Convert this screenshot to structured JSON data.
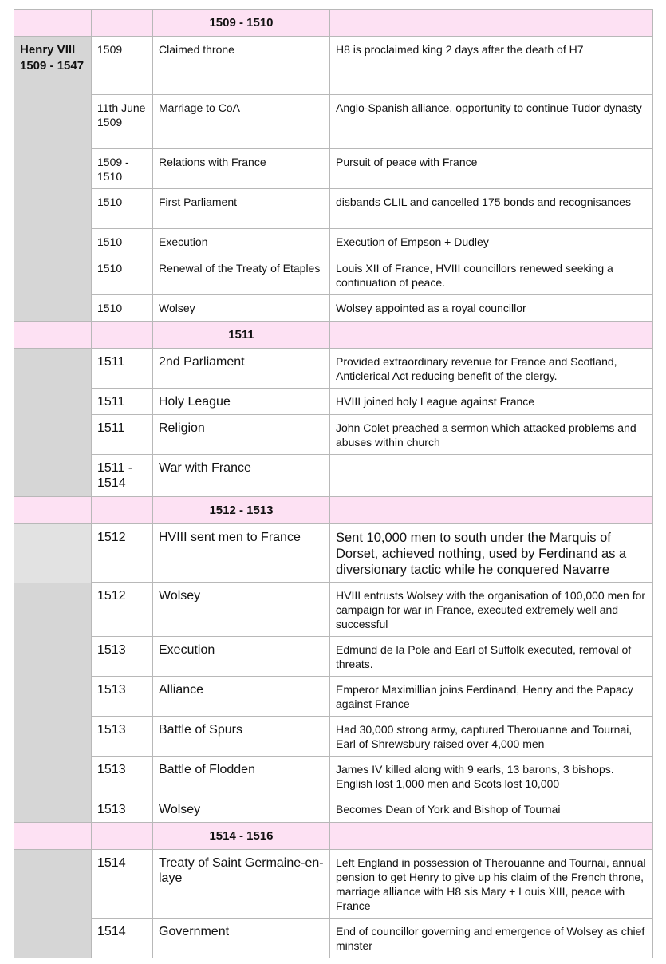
{
  "king": "Henry VIII 1509 - 1547",
  "colors": {
    "section_header": "#fde1f3",
    "reign_column": "#d6d6d6",
    "border": "#b8b8b8"
  },
  "sections": [
    {
      "title": "1509 - 1510",
      "rows": [
        {
          "year": "1509",
          "event": "Claimed throne",
          "detail": "H8 is proclaimed king 2 days after the death of H7"
        },
        {
          "year": "11th June 1509",
          "event": "Marriage to CoA",
          "detail": "Anglo-Spanish alliance, opportunity to continue Tudor dynasty"
        },
        {
          "year": "1509 - 1510",
          "event": "Relations with France",
          "detail": "Pursuit of peace with France"
        },
        {
          "year": "1510",
          "event": "First Parliament",
          "detail": "disbands CLIL and cancelled 175 bonds and recognisances"
        },
        {
          "year": "1510",
          "event": "Execution",
          "detail": "Execution of Empson + Dudley"
        },
        {
          "year": "1510",
          "event": "Renewal of the Treaty of Etaples",
          "detail": "Louis XII of France, HVIII councillors renewed seeking a continuation of peace."
        },
        {
          "year": "1510",
          "event": "Wolsey",
          "detail": "Wolsey appointed as a royal councillor"
        }
      ]
    },
    {
      "title": "1511",
      "rows": [
        {
          "year": "1511",
          "event": "2nd Parliament",
          "detail": "Provided extraordinary revenue for France and Scotland, Anticlerical Act reducing benefit of the clergy."
        },
        {
          "year": "1511",
          "event": "Holy League",
          "detail": "HVIII joined holy League against France"
        },
        {
          "year": "1511",
          "event": "Religion",
          "detail": "John Colet preached a sermon which attacked problems and abuses within church"
        },
        {
          "year": "1511 - 1514",
          "event": "War with France",
          "detail": ""
        }
      ]
    },
    {
      "title": "1512 - 1513",
      "rows": [
        {
          "year": "1512",
          "event": "HVIII sent men to France",
          "detail": "Sent 10,000 men to south under the Marquis of Dorset, achieved nothing, used by Ferdinand as a diversionary tactic while he conquered Navarre"
        },
        {
          "year": "1512",
          "event": "Wolsey",
          "detail": "HVIII entrusts Wolsey with the organisation of 100,000 men for campaign for war in France, executed extremely well and successful"
        },
        {
          "year": "1513",
          "event": "Execution",
          "detail": "Edmund de la Pole and Earl of Suffolk executed, removal of threats."
        },
        {
          "year": "1513",
          "event": "Alliance",
          "detail": "Emperor Maximillian joins Ferdinand, Henry and the Papacy against France"
        },
        {
          "year": "1513",
          "event": "Battle of Spurs",
          "detail": "Had 30,000 strong army, captured Therouanne and Tournai, Earl of Shrewsbury raised over 4,000 men"
        },
        {
          "year": "1513",
          "event": "Battle of Flodden",
          "detail": "James IV killed along with 9 earls, 13 barons, 3 bishops. English lost 1,000 men and Scots lost 10,000"
        },
        {
          "year": "1513",
          "event": "Wolsey",
          "detail": "Becomes Dean of York and Bishop of Tournai"
        }
      ]
    },
    {
      "title": "1514 - 1516",
      "rows": [
        {
          "year": "1514",
          "event": "Treaty of Saint Germaine-en-laye",
          "detail": "Left England in possession of Therouanne and Tournai, annual pension to get Henry to give up his claim of the French throne, marriage alliance with H8 sis Mary + Louis XIII, peace with France"
        },
        {
          "year": "1514",
          "event": "Government",
          "detail": "End of councillor governing and emergence of Wolsey as chief minster"
        }
      ]
    }
  ]
}
